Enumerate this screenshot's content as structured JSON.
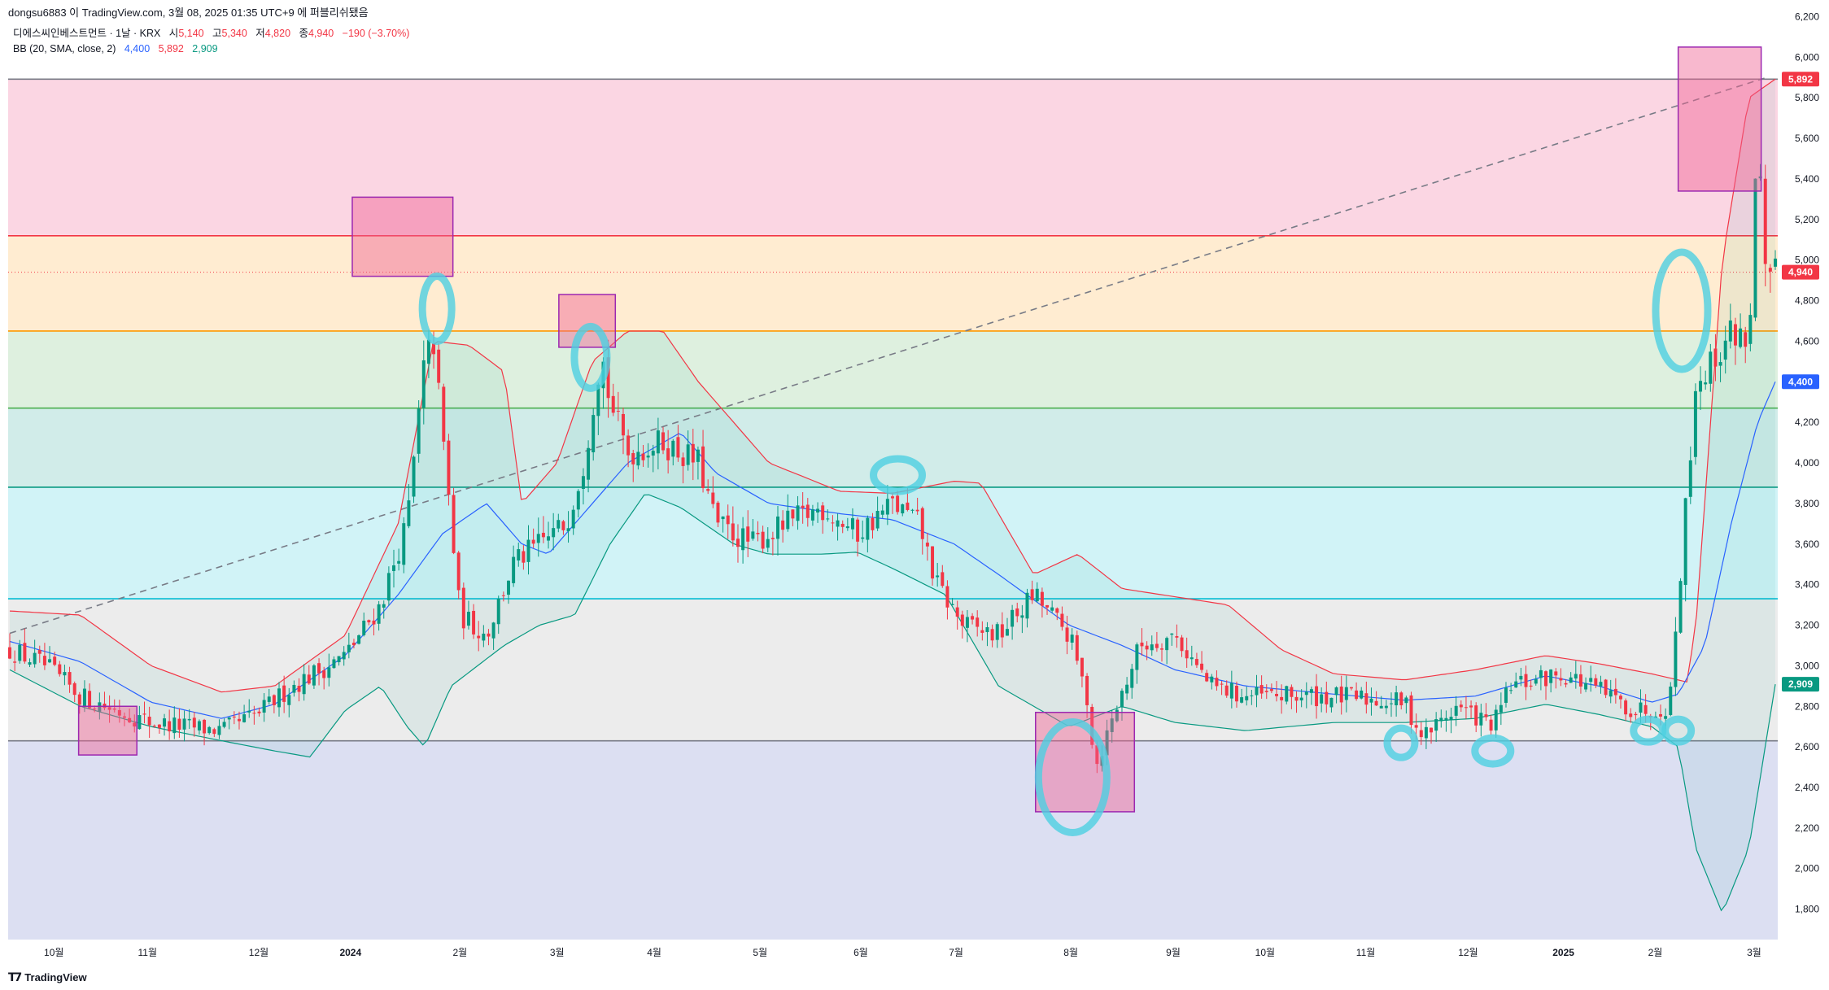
{
  "header": {
    "caption": "dongsu6883 이 TradingView.com, 3월 08, 2025 01:35 UTC+9 에 퍼블리쉬됐음"
  },
  "legend": {
    "symbol": "디에스씨인베스트먼트 · 1날 · KRX",
    "open_label": "시",
    "open": "5,140",
    "high_label": "고",
    "high": "5,340",
    "low_label": "저",
    "low": "4,820",
    "close_label": "종",
    "close": "4,940",
    "change": "−190 (−3.70%)",
    "bb_label": "BB (20, SMA, close, 2)",
    "bb_basis": "4,400",
    "bb_upper": "5,892",
    "bb_lower": "2,909"
  },
  "footer": {
    "brand": "TradingView"
  },
  "colors": {
    "up": "#089981",
    "down": "#f23645",
    "bb_basis": "#2962ff",
    "bb_upper": "#f23645",
    "bb_lower": "#089981",
    "highlight_box": "#f06292",
    "circle": "#4dd0e1"
  },
  "chart_data": {
    "type": "candlestick",
    "ylim": [
      1650,
      6250
    ],
    "y_ticks": [
      "6,200",
      "6,000",
      "5,800",
      "5,600",
      "5,400",
      "5,200",
      "5,000",
      "4,800",
      "4,600",
      "4,400",
      "4,200",
      "4,000",
      "3,800",
      "3,600",
      "3,400",
      "3,200",
      "3,000",
      "2,800",
      "2,600",
      "2,400",
      "2,200",
      "2,000",
      "1,800"
    ],
    "y_tick_values": [
      6200,
      6000,
      5800,
      5600,
      5400,
      5200,
      5000,
      4800,
      4600,
      4400,
      4200,
      4000,
      3800,
      3600,
      3400,
      3200,
      3000,
      2800,
      2600,
      2400,
      2200,
      2000,
      1800
    ],
    "x_labels": [
      {
        "label": "10월",
        "t": 0.025
      },
      {
        "label": "11월",
        "t": 0.078
      },
      {
        "label": "12월",
        "t": 0.141
      },
      {
        "label": "2024",
        "t": 0.193
      },
      {
        "label": "2월",
        "t": 0.255
      },
      {
        "label": "3월",
        "t": 0.31
      },
      {
        "label": "4월",
        "t": 0.365
      },
      {
        "label": "5월",
        "t": 0.425
      },
      {
        "label": "6월",
        "t": 0.482
      },
      {
        "label": "7월",
        "t": 0.536
      },
      {
        "label": "8월",
        "t": 0.601
      },
      {
        "label": "9월",
        "t": 0.659
      },
      {
        "label": "10월",
        "t": 0.711
      },
      {
        "label": "11월",
        "t": 0.768
      },
      {
        "label": "12월",
        "t": 0.826
      },
      {
        "label": "2025",
        "t": 0.88
      },
      {
        "label": "2월",
        "t": 0.932
      },
      {
        "label": "3월",
        "t": 0.988
      }
    ],
    "price_labels": [
      {
        "value": 5892,
        "text": "5,892",
        "color": "#f23645"
      },
      {
        "value": 4940,
        "text": "4,940",
        "color": "#f23645"
      },
      {
        "value": 4400,
        "text": "4,400",
        "color": "#2962ff"
      },
      {
        "value": 2909,
        "text": "2,909",
        "color": "#089981"
      }
    ],
    "fib_levels": [
      {
        "value": 5892,
        "color": "#787b86",
        "fill": "#f8bbd0"
      },
      {
        "value": 5120,
        "color": "#f23645",
        "fill": "#ffe0b2"
      },
      {
        "value": 4650,
        "color": "#ff9800",
        "fill": "#c8e6c9"
      },
      {
        "value": 4270,
        "color": "#4caf50",
        "fill": "#b2dfdb"
      },
      {
        "value": 3880,
        "color": "#089981",
        "fill": "#b2ebf2"
      },
      {
        "value": 3330,
        "color": "#00bcd4",
        "fill": "#e0e0e0"
      },
      {
        "value": 2630,
        "color": "#787b86",
        "fill": "#c5cae9"
      }
    ],
    "fib_bottom": 1650,
    "trendline": {
      "t0": 0.0,
      "v0": 3160,
      "t1": 0.995,
      "v1": 5900
    },
    "basis_anchors": [
      [
        0,
        3120
      ],
      [
        0.04,
        3020
      ],
      [
        0.08,
        2820
      ],
      [
        0.12,
        2740
      ],
      [
        0.15,
        2810
      ],
      [
        0.19,
        3050
      ],
      [
        0.22,
        3350
      ],
      [
        0.245,
        3650
      ],
      [
        0.27,
        3800
      ],
      [
        0.29,
        3600
      ],
      [
        0.305,
        3550
      ],
      [
        0.325,
        3750
      ],
      [
        0.35,
        4000
      ],
      [
        0.38,
        4150
      ],
      [
        0.4,
        3950
      ],
      [
        0.43,
        3800
      ],
      [
        0.47,
        3750
      ],
      [
        0.5,
        3720
      ],
      [
        0.535,
        3600
      ],
      [
        0.56,
        3450
      ],
      [
        0.6,
        3200
      ],
      [
        0.63,
        3100
      ],
      [
        0.66,
        2980
      ],
      [
        0.7,
        2900
      ],
      [
        0.75,
        2860
      ],
      [
        0.79,
        2830
      ],
      [
        0.83,
        2850
      ],
      [
        0.87,
        2950
      ],
      [
        0.9,
        2900
      ],
      [
        0.93,
        2820
      ],
      [
        0.945,
        2860
      ],
      [
        0.96,
        3100
      ],
      [
        0.975,
        3700
      ],
      [
        0.99,
        4200
      ],
      [
        1.0,
        4400
      ]
    ],
    "upper_anchors": [
      [
        0,
        3270
      ],
      [
        0.04,
        3250
      ],
      [
        0.08,
        3000
      ],
      [
        0.12,
        2870
      ],
      [
        0.15,
        2900
      ],
      [
        0.19,
        3150
      ],
      [
        0.22,
        3700
      ],
      [
        0.24,
        4600
      ],
      [
        0.26,
        4580
      ],
      [
        0.28,
        4450
      ],
      [
        0.29,
        3800
      ],
      [
        0.31,
        4000
      ],
      [
        0.33,
        4500
      ],
      [
        0.35,
        4650
      ],
      [
        0.37,
        4650
      ],
      [
        0.39,
        4400
      ],
      [
        0.41,
        4200
      ],
      [
        0.43,
        4000
      ],
      [
        0.47,
        3860
      ],
      [
        0.5,
        3850
      ],
      [
        0.535,
        3910
      ],
      [
        0.55,
        3900
      ],
      [
        0.58,
        3450
      ],
      [
        0.605,
        3550
      ],
      [
        0.63,
        3380
      ],
      [
        0.66,
        3340
      ],
      [
        0.69,
        3300
      ],
      [
        0.72,
        3080
      ],
      [
        0.75,
        2960
      ],
      [
        0.79,
        2930
      ],
      [
        0.83,
        2980
      ],
      [
        0.87,
        3050
      ],
      [
        0.9,
        3010
      ],
      [
        0.93,
        2960
      ],
      [
        0.95,
        2920
      ],
      [
        0.955,
        3200
      ],
      [
        0.97,
        5000
      ],
      [
        0.985,
        5800
      ],
      [
        1.0,
        5892
      ]
    ],
    "lower_anchors": [
      [
        0,
        2980
      ],
      [
        0.04,
        2800
      ],
      [
        0.08,
        2700
      ],
      [
        0.12,
        2630
      ],
      [
        0.15,
        2580
      ],
      [
        0.17,
        2550
      ],
      [
        0.19,
        2780
      ],
      [
        0.21,
        2900
      ],
      [
        0.225,
        2700
      ],
      [
        0.235,
        2600
      ],
      [
        0.25,
        2900
      ],
      [
        0.28,
        3100
      ],
      [
        0.3,
        3200
      ],
      [
        0.32,
        3250
      ],
      [
        0.34,
        3600
      ],
      [
        0.36,
        3850
      ],
      [
        0.38,
        3780
      ],
      [
        0.41,
        3600
      ],
      [
        0.43,
        3550
      ],
      [
        0.46,
        3550
      ],
      [
        0.48,
        3560
      ],
      [
        0.5,
        3480
      ],
      [
        0.53,
        3350
      ],
      [
        0.56,
        2900
      ],
      [
        0.58,
        2800
      ],
      [
        0.6,
        2700
      ],
      [
        0.63,
        2800
      ],
      [
        0.66,
        2720
      ],
      [
        0.7,
        2680
      ],
      [
        0.75,
        2720
      ],
      [
        0.79,
        2720
      ],
      [
        0.83,
        2740
      ],
      [
        0.87,
        2810
      ],
      [
        0.9,
        2760
      ],
      [
        0.93,
        2700
      ],
      [
        0.945,
        2600
      ],
      [
        0.955,
        2100
      ],
      [
        0.97,
        1780
      ],
      [
        0.985,
        2100
      ],
      [
        1.0,
        2909
      ]
    ],
    "close_anchors": [
      [
        0,
        3080
      ],
      [
        0.02,
        3000
      ],
      [
        0.04,
        2850
      ],
      [
        0.06,
        2780
      ],
      [
        0.08,
        2720
      ],
      [
        0.1,
        2700
      ],
      [
        0.12,
        2680
      ],
      [
        0.14,
        2760
      ],
      [
        0.16,
        2900
      ],
      [
        0.19,
        3050
      ],
      [
        0.21,
        3300
      ],
      [
        0.225,
        3700
      ],
      [
        0.235,
        4500
      ],
      [
        0.24,
        4600
      ],
      [
        0.25,
        3700
      ],
      [
        0.255,
        3250
      ],
      [
        0.27,
        3150
      ],
      [
        0.285,
        3500
      ],
      [
        0.3,
        3600
      ],
      [
        0.315,
        3700
      ],
      [
        0.325,
        4000
      ],
      [
        0.335,
        4550
      ],
      [
        0.34,
        4300
      ],
      [
        0.35,
        4050
      ],
      [
        0.37,
        4100
      ],
      [
        0.39,
        4000
      ],
      [
        0.4,
        3700
      ],
      [
        0.42,
        3600
      ],
      [
        0.44,
        3700
      ],
      [
        0.46,
        3780
      ],
      [
        0.48,
        3650
      ],
      [
        0.5,
        3800
      ],
      [
        0.515,
        3700
      ],
      [
        0.525,
        3400
      ],
      [
        0.54,
        3200
      ],
      [
        0.56,
        3150
      ],
      [
        0.58,
        3350
      ],
      [
        0.6,
        3150
      ],
      [
        0.61,
        2850
      ],
      [
        0.615,
        2500
      ],
      [
        0.625,
        2750
      ],
      [
        0.64,
        3100
      ],
      [
        0.66,
        3150
      ],
      [
        0.68,
        2900
      ],
      [
        0.7,
        2850
      ],
      [
        0.75,
        2850
      ],
      [
        0.79,
        2820
      ],
      [
        0.8,
        2650
      ],
      [
        0.82,
        2800
      ],
      [
        0.84,
        2700
      ],
      [
        0.85,
        2900
      ],
      [
        0.88,
        2960
      ],
      [
        0.9,
        2880
      ],
      [
        0.92,
        2780
      ],
      [
        0.94,
        2800
      ],
      [
        0.955,
        4400
      ],
      [
        0.965,
        4500
      ],
      [
        0.975,
        4650
      ],
      [
        0.985,
        4600
      ],
      [
        0.99,
        5600
      ],
      [
        0.995,
        4800
      ],
      [
        1.0,
        4940
      ]
    ]
  },
  "annotations": {
    "boxes": [
      {
        "t0": 0.039,
        "t1": 0.072,
        "v0": 2560,
        "v1": 2800
      },
      {
        "t0": 0.194,
        "t1": 0.251,
        "v0": 4920,
        "v1": 5310
      },
      {
        "t0": 0.311,
        "t1": 0.343,
        "v0": 4570,
        "v1": 4830
      },
      {
        "t0": 0.581,
        "t1": 0.637,
        "v0": 2280,
        "v1": 2770
      },
      {
        "t0": 0.945,
        "t1": 0.992,
        "v0": 5340,
        "v1": 6050
      }
    ]
  }
}
